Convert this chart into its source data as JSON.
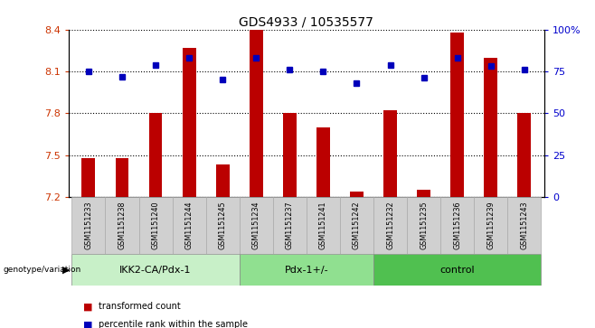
{
  "title": "GDS4933 / 10535577",
  "samples": [
    "GSM1151233",
    "GSM1151238",
    "GSM1151240",
    "GSM1151244",
    "GSM1151245",
    "GSM1151234",
    "GSM1151237",
    "GSM1151241",
    "GSM1151242",
    "GSM1151232",
    "GSM1151235",
    "GSM1151236",
    "GSM1151239",
    "GSM1151243"
  ],
  "bar_values": [
    7.48,
    7.48,
    7.8,
    8.27,
    7.43,
    8.4,
    7.8,
    7.7,
    7.24,
    7.82,
    7.25,
    8.38,
    8.2,
    7.8
  ],
  "percentile_values": [
    75,
    72,
    79,
    83,
    70,
    83,
    76,
    75,
    68,
    79,
    71,
    83,
    78,
    76
  ],
  "bar_base": 7.2,
  "ylim_left": [
    7.2,
    8.4
  ],
  "ylim_right": [
    0,
    100
  ],
  "yticks_left": [
    7.2,
    7.5,
    7.8,
    8.1,
    8.4
  ],
  "yticks_right": [
    0,
    25,
    50,
    75,
    100
  ],
  "ytick_labels_right": [
    "0",
    "25",
    "50",
    "75",
    "100%"
  ],
  "groups": [
    {
      "name": "IKK2-CA/Pdx-1",
      "count": 5,
      "color": "#c8f0c8"
    },
    {
      "name": "Pdx-1+/-",
      "count": 4,
      "color": "#90e090"
    },
    {
      "name": "control",
      "count": 5,
      "color": "#50c050"
    }
  ],
  "bar_color": "#bb0000",
  "dot_color": "#0000bb",
  "bar_width": 0.4,
  "tick_label_color_left": "#cc3300",
  "tick_label_color_right": "#0000cc",
  "legend_items": [
    "transformed count",
    "percentile rank within the sample"
  ],
  "genotype_label": "genotype/variation",
  "sample_box_color": "#d0d0d0",
  "title_fontsize": 10,
  "axis_fontsize": 8
}
